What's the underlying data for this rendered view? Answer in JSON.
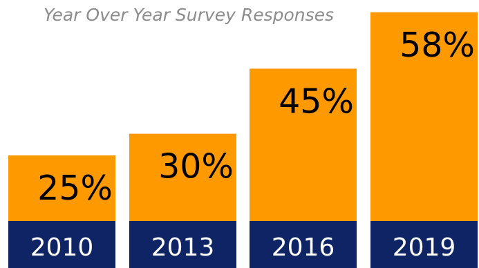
{
  "colors": {
    "bar_top": "#FF9900",
    "bar_base": "#0E2464",
    "title": "#8C8C8C",
    "value_text": "#000000",
    "year_text": "#FFFFFF",
    "background": "#FFFFFF"
  },
  "chart_data": {
    "type": "bar",
    "title": "Year Over Year Survey Responses",
    "xlabel": "",
    "ylabel": "",
    "categories": [
      "2010",
      "2013",
      "2016",
      "2019"
    ],
    "values": [
      25,
      30,
      45,
      58
    ],
    "value_labels": [
      "25%",
      "30%",
      "45%",
      "58%"
    ],
    "ylim": [
      0,
      58
    ],
    "grid": false,
    "legend": "none"
  }
}
